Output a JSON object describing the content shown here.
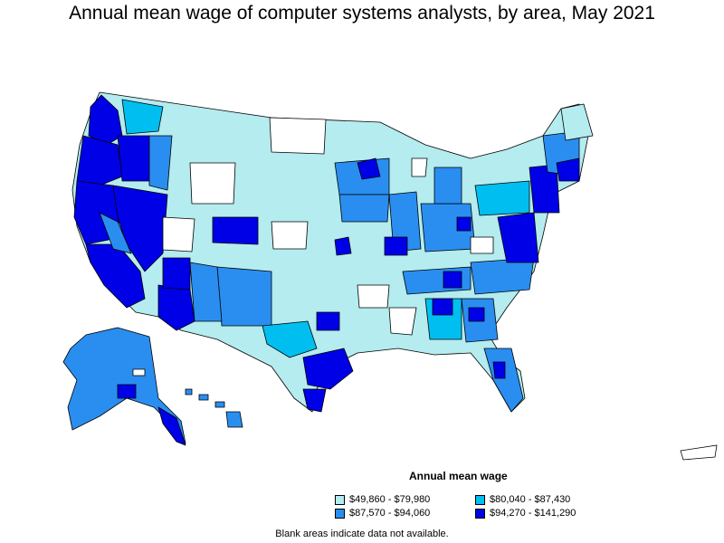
{
  "title": "Annual mean wage of computer systems analysts, by area, May 2021",
  "legend": {
    "title": "Annual mean wage",
    "items": [
      {
        "label": "$49,860 - $79,980",
        "color": "#b4ecef"
      },
      {
        "label": "$80,040 - $87,430",
        "color": "#00bff0"
      },
      {
        "label": "$87,570 - $94,060",
        "color": "#2a8ef0"
      },
      {
        "label": "$94,270 - $141,290",
        "color": "#0000e6"
      }
    ]
  },
  "footnote": "Blank areas indicate data not available."
}
